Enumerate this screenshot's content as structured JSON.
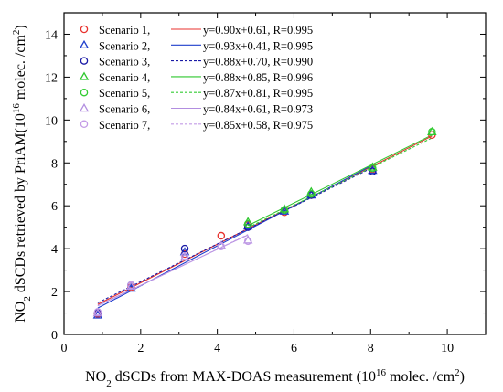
{
  "chart_data": {
    "type": "scatter",
    "xlabel": {
      "prefix": "NO",
      "sub": "2",
      "main": " dSCDs from MAX-DOAS measurement (10",
      "sup": "16",
      "mid": " molec. /cm",
      "sup2": "2",
      "suffix": ")"
    },
    "ylabel": {
      "prefix": "NO",
      "sub": "2",
      "main": " dSCDs retrieved by PriAM(10",
      "sup": "16",
      "mid": " molec. /cm",
      "sup2": "2",
      "suffix": ")"
    },
    "xlim": [
      0,
      11
    ],
    "ylim": [
      0,
      15
    ],
    "xticks": [
      0,
      2,
      4,
      6,
      8,
      10
    ],
    "yticks": [
      0,
      2,
      4,
      6,
      8,
      10,
      12,
      14
    ],
    "grid": false,
    "legend_position": "top-left",
    "series": [
      {
        "name": "Scenario 1,",
        "marker": "circle",
        "color": "#e8302c",
        "fit_label": "y=0.90x+0.61, R=0.995",
        "fit": {
          "slope": 0.9,
          "intercept": 0.61
        },
        "fit_style": "solid",
        "x": [
          0.88,
          1.75,
          3.15,
          4.1,
          4.8,
          5.75,
          6.45,
          8.05,
          9.6
        ],
        "y": [
          0.95,
          2.2,
          3.75,
          4.6,
          5.1,
          5.7,
          6.5,
          7.7,
          9.3
        ]
      },
      {
        "name": "Scenario 2,",
        "marker": "triangle",
        "color": "#1f3fcc",
        "fit_label": "y=0.93x+0.41, R=0.995",
        "fit": {
          "slope": 0.93,
          "intercept": 0.41
        },
        "fit_style": "solid",
        "x": [
          0.88,
          1.75,
          3.15,
          4.8,
          5.75,
          6.45,
          8.05
        ],
        "y": [
          0.9,
          2.15,
          3.85,
          5.05,
          5.75,
          6.5,
          7.65
        ]
      },
      {
        "name": "Scenario 3,",
        "marker": "circle",
        "color": "#1a1aa6",
        "fit_label": "y=0.88x+0.70, R=0.990",
        "fit": {
          "slope": 0.88,
          "intercept": 0.7
        },
        "fit_style": "dashed",
        "x": [
          0.88,
          1.75,
          3.15,
          4.8,
          5.75,
          6.45,
          8.05
        ],
        "y": [
          1.0,
          2.3,
          4.0,
          5.0,
          5.8,
          6.5,
          7.6
        ]
      },
      {
        "name": "Scenario 4,",
        "marker": "triangle",
        "color": "#2ec72e",
        "fit_label": "y=0.88x+0.85, R=0.996",
        "fit": {
          "slope": 0.88,
          "intercept": 0.85
        },
        "fit_style": "solid",
        "x": [
          4.8,
          5.75,
          6.45,
          8.05,
          9.6
        ],
        "y": [
          5.25,
          5.85,
          6.65,
          7.8,
          9.45
        ]
      },
      {
        "name": "Scenario 5,",
        "marker": "circle",
        "color": "#33cc33",
        "fit_label": "y=0.87x+0.81, R=0.995",
        "fit": {
          "slope": 0.87,
          "intercept": 0.81
        },
        "fit_style": "dashed",
        "x": [
          4.8,
          5.75,
          6.45,
          8.05,
          9.6
        ],
        "y": [
          5.15,
          5.8,
          6.55,
          7.75,
          9.45
        ]
      },
      {
        "name": "Scenario 6,",
        "marker": "triangle",
        "color": "#b28ee0",
        "fit_label": "y=0.84x+0.61, R=0.973",
        "fit": {
          "slope": 0.84,
          "intercept": 0.61
        },
        "fit_style": "solid",
        "x": [
          0.88,
          1.75,
          3.15,
          4.1,
          4.8
        ],
        "y": [
          1.0,
          2.25,
          3.6,
          4.15,
          4.4
        ]
      },
      {
        "name": "Scenario 7,",
        "marker": "circle",
        "color": "#c39be6",
        "fit_label": "y=0.85x+0.58, R=0.975",
        "fit": {
          "slope": 0.85,
          "intercept": 0.58
        },
        "fit_style": "dashed",
        "x": [
          0.88,
          1.75,
          3.15,
          4.1,
          4.8
        ],
        "y": [
          1.05,
          2.3,
          3.65,
          4.1,
          4.35
        ]
      }
    ]
  }
}
